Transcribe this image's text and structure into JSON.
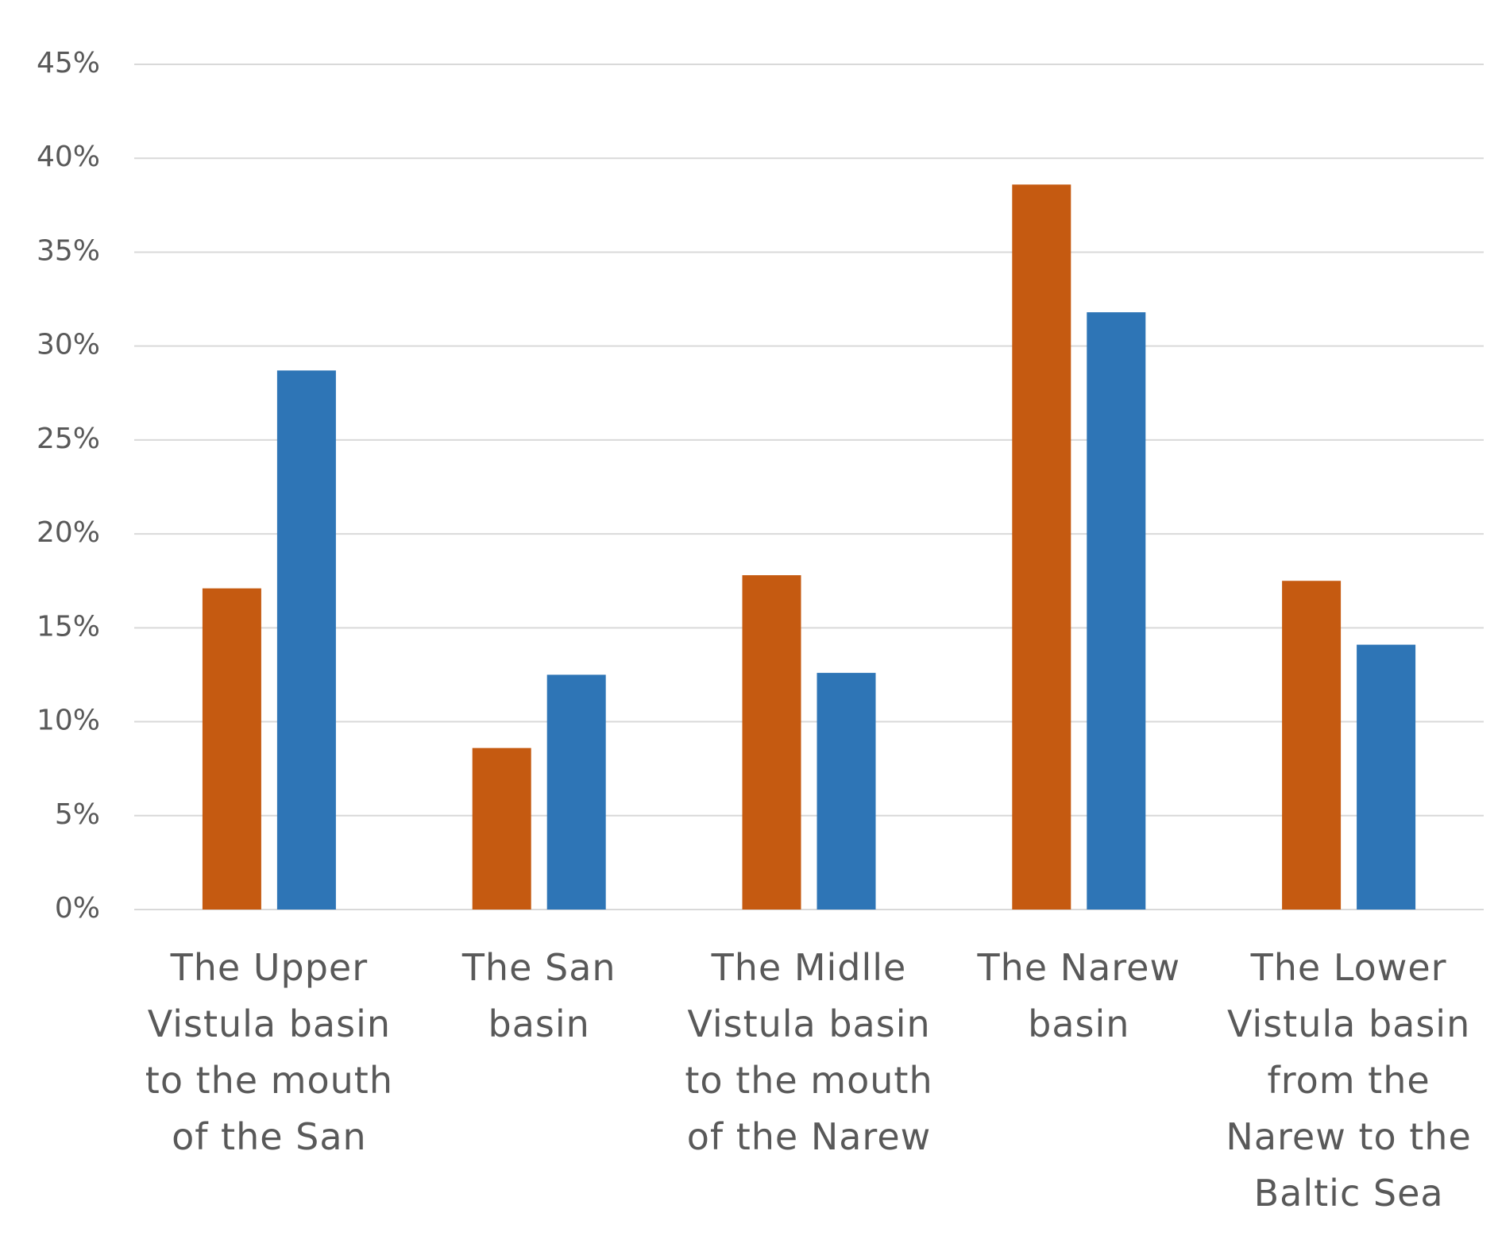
{
  "chart_data": {
    "type": "bar",
    "categories": [
      "The Upper Vistula basin to the mouth of the San",
      "The San basin",
      "The Midlle Vistula basin to the mouth of the Narew",
      "The Narew basin",
      "The Lower Vistula basin from the Narew to the Baltic Sea"
    ],
    "series": [
      {
        "color": "#c55a11",
        "values": [
          17.1,
          8.6,
          17.8,
          38.6,
          17.5
        ]
      },
      {
        "color": "#2e75b6",
        "values": [
          28.7,
          12.5,
          12.6,
          31.8,
          14.1
        ]
      }
    ],
    "ylim": [
      0,
      45
    ],
    "yticks": [
      {
        "value": 0,
        "label": "0%"
      },
      {
        "value": 5,
        "label": "5%"
      },
      {
        "value": 10,
        "label": "10%"
      },
      {
        "value": 15,
        "label": "15%"
      },
      {
        "value": 20,
        "label": "20%"
      },
      {
        "value": 25,
        "label": "25%"
      },
      {
        "value": 30,
        "label": "30%"
      },
      {
        "value": 35,
        "label": "35%"
      },
      {
        "value": 40,
        "label": "40%"
      },
      {
        "value": 45,
        "label": "45%"
      }
    ],
    "grid": true
  }
}
